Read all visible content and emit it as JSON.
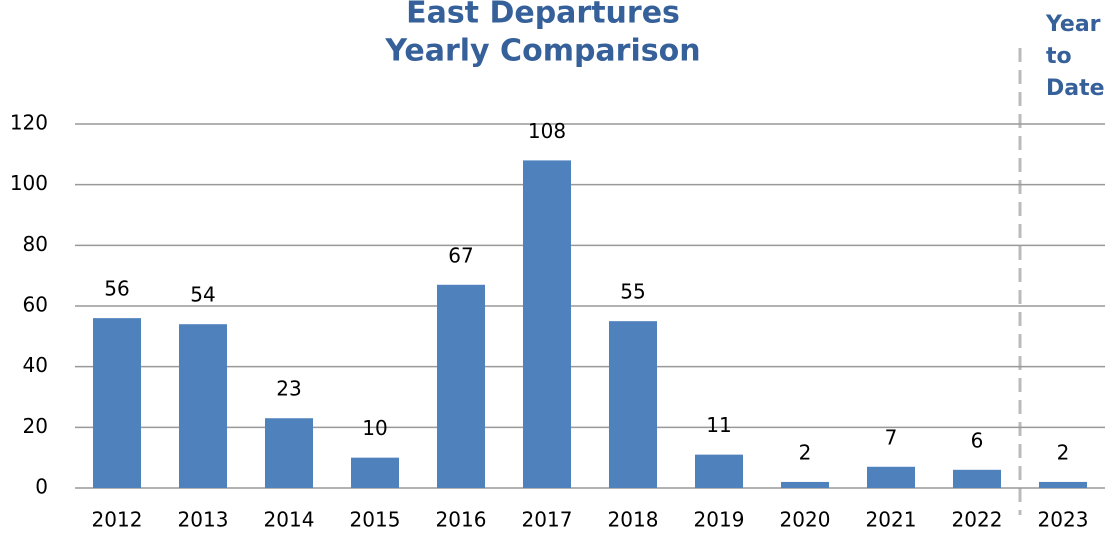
{
  "chart_data": {
    "type": "bar",
    "title": [
      "East Departures",
      "Yearly Comparison"
    ],
    "annotation": [
      "Year",
      "to",
      "Date"
    ],
    "categories": [
      "2012",
      "2013",
      "2014",
      "2015",
      "2016",
      "2017",
      "2018",
      "2019",
      "2020",
      "2021",
      "2022",
      "2023"
    ],
    "values": [
      56,
      54,
      23,
      10,
      67,
      108,
      55,
      11,
      2,
      7,
      6,
      2
    ],
    "color": "#4f81bd",
    "ylim": [
      0,
      120
    ],
    "yticks": [
      0,
      20,
      40,
      60,
      80,
      100,
      120
    ],
    "grid": true
  }
}
